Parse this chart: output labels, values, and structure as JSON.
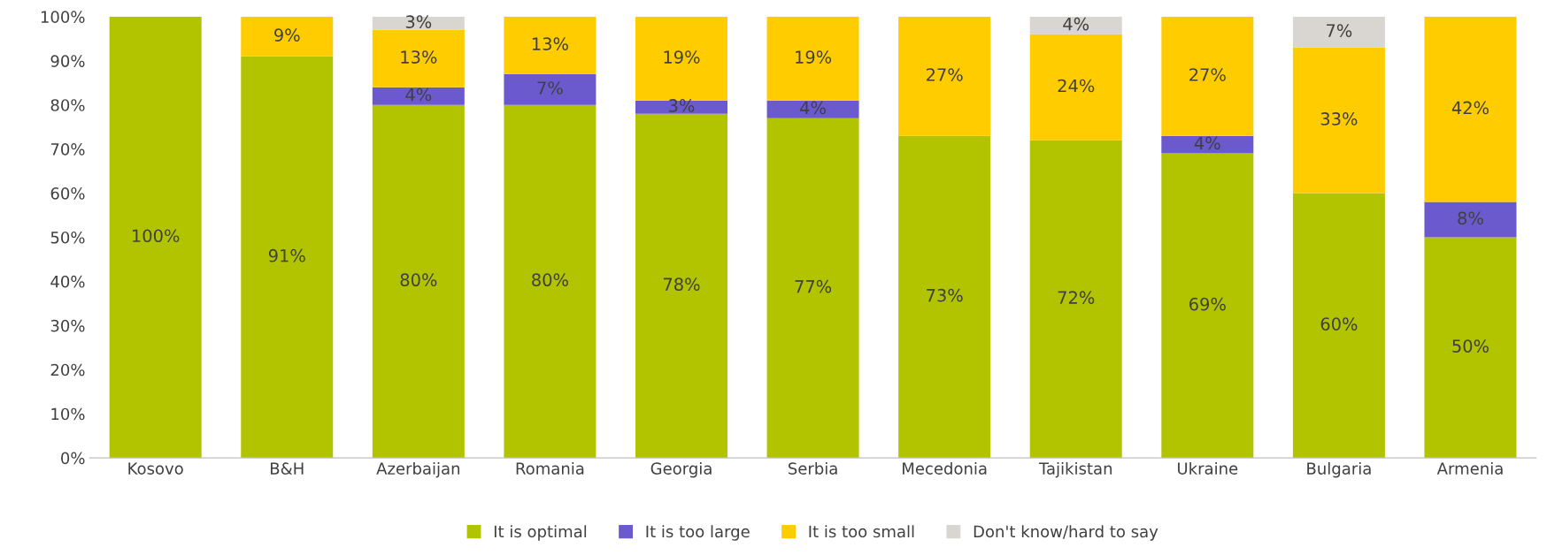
{
  "chart_data": {
    "type": "bar",
    "stacked": true,
    "categories": [
      "Kosovo",
      "B&H",
      "Azerbaijan",
      "Romania",
      "Georgia",
      "Serbia",
      "Mecedonia",
      "Tajikistan",
      "Ukraine",
      "Bulgaria",
      "Armenia"
    ],
    "series": [
      {
        "name": "It is optimal",
        "color": "#b2c300",
        "values": [
          100,
          91,
          80,
          80,
          78,
          77,
          73,
          72,
          69,
          60,
          50
        ],
        "value_labels": [
          "100%",
          "91%",
          "80%",
          "80%",
          "78%",
          "77%",
          "73%",
          "72%",
          "69%",
          "60%",
          "50%"
        ]
      },
      {
        "name": "It is too large",
        "color": "#6a5acd",
        "values": [
          null,
          null,
          4,
          7,
          3,
          4,
          null,
          null,
          4,
          null,
          8
        ],
        "value_labels": [
          null,
          null,
          "4%",
          "7%",
          "3%",
          "4%",
          null,
          null,
          "4%",
          null,
          "8%"
        ]
      },
      {
        "name": "It is too small",
        "color": "#ffcc00",
        "values": [
          null,
          9,
          13,
          13,
          19,
          19,
          27,
          24,
          27,
          33,
          42
        ],
        "value_labels": [
          null,
          "9%",
          "13%",
          "13%",
          "19%",
          "19%",
          "27%",
          "24%",
          "27%",
          "33%",
          "42%"
        ]
      },
      {
        "name": "Don't know/hard to say",
        "color": "#d9d5d0",
        "values": [
          null,
          null,
          3,
          null,
          null,
          null,
          null,
          4,
          null,
          7,
          null
        ],
        "value_labels": [
          null,
          null,
          "3%",
          null,
          null,
          null,
          null,
          "4%",
          null,
          "7%",
          null
        ]
      }
    ],
    "ylim": [
      0,
      100
    ],
    "yticks": [
      {
        "value": 0,
        "label": "0%"
      },
      {
        "value": 10,
        "label": "10%"
      },
      {
        "value": 20,
        "label": "20%"
      },
      {
        "value": 30,
        "label": "30%"
      },
      {
        "value": 40,
        "label": "40%"
      },
      {
        "value": 50,
        "label": "50%"
      },
      {
        "value": 60,
        "label": "60%"
      },
      {
        "value": 70,
        "label": "70%"
      },
      {
        "value": 80,
        "label": "80%"
      },
      {
        "value": 90,
        "label": "90%"
      },
      {
        "value": 100,
        "label": "100%"
      }
    ],
    "legend": "bottom",
    "grid": false
  }
}
